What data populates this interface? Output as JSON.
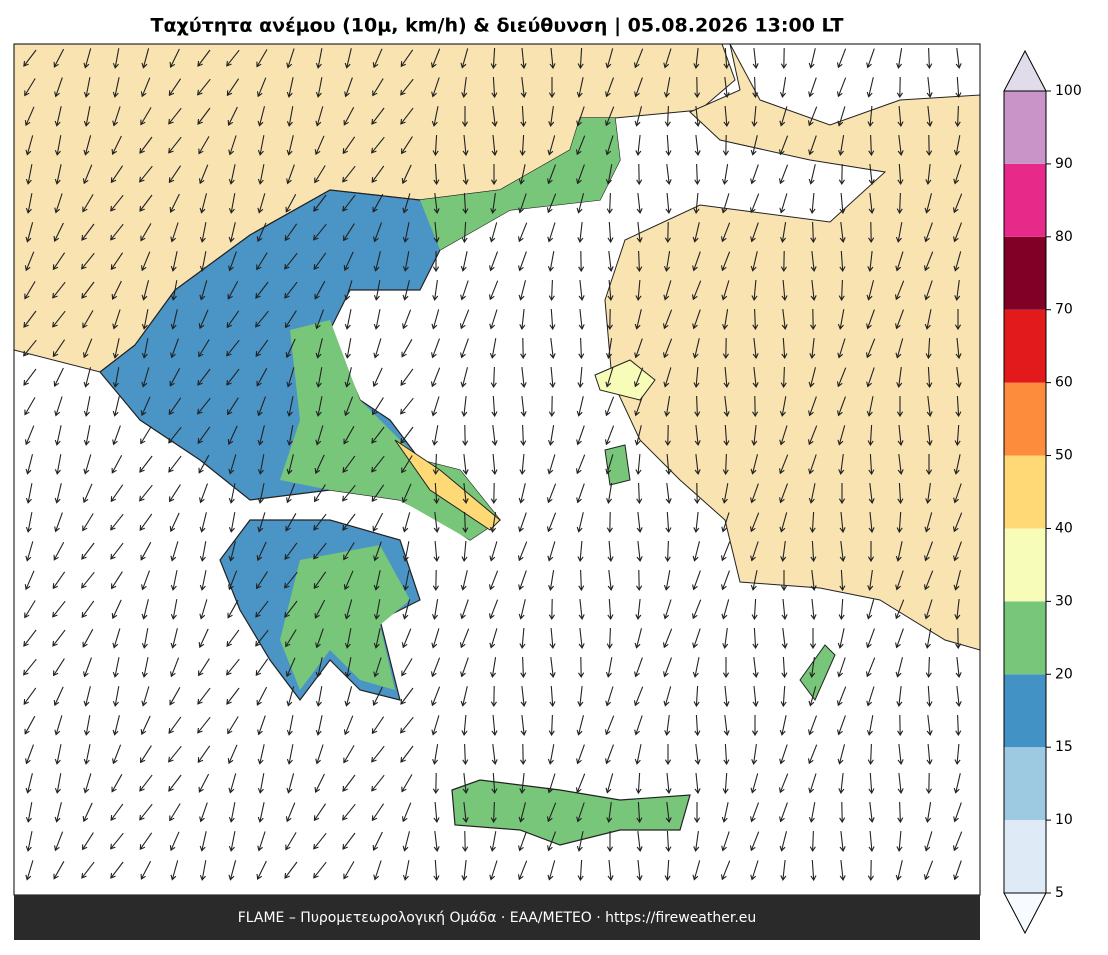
{
  "title": "Ταχύτητα ανέμου (10μ, km/h) & διεύθυνση  |  05.08.2026 13:00 LT",
  "footer": "FLAME – Πυρομετεωρολογική Ομάδα · ΕΑΑ/METEO · https://fireweather.eu",
  "colorbar": {
    "levels": [
      5,
      10,
      15,
      20,
      30,
      40,
      50,
      60,
      70,
      80,
      90,
      100
    ],
    "colors": [
      "#deebf7",
      "#9ecae1",
      "#4292c6",
      "#78c679",
      "#f7fcb9",
      "#fed976",
      "#fd8d3c",
      "#e31a1c",
      "#800026",
      "#e7298a",
      "#c994c7"
    ],
    "under_color": "#f7fbff",
    "over_color": "#e0dcea"
  }
}
